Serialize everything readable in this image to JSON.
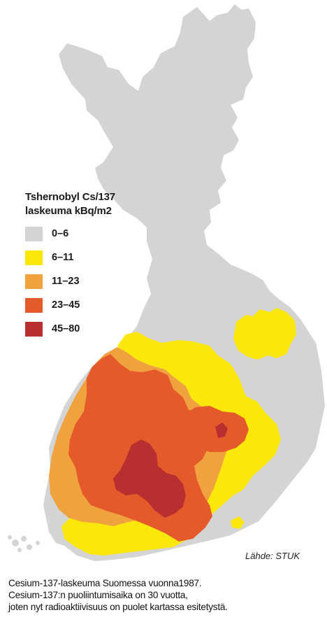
{
  "legend": {
    "title_line1": "Tshernobyl Cs/137",
    "title_line2": "laskeuma kBq/m2",
    "items": [
      {
        "label": "0–6",
        "color": "#d4d4d4"
      },
      {
        "label": "6–11",
        "color": "#fbe80a"
      },
      {
        "label": "11–23",
        "color": "#f0a23e"
      },
      {
        "label": "23–45",
        "color": "#e55a2b"
      },
      {
        "label": "45–80",
        "color": "#b92f30"
      }
    ]
  },
  "source": "Lähde: STUK",
  "caption": {
    "line1": "Cesium-137-laskeuma Suomessa vuonna1987.",
    "line2": "Cesium-137:n puoliintumisaika on 30 vuotta,",
    "line3": "joten nyt radioaktiivisuus on puolet kartassa esitetystä."
  }
}
